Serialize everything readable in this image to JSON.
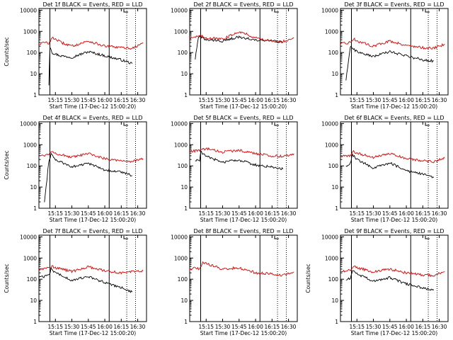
{
  "figure": {
    "colors": {
      "events": "#000000",
      "lld": "#dd0000",
      "axes": "#000000",
      "background": "#ffffff"
    }
  },
  "chart_data": [
    {
      "type": "line",
      "title": "Det 1f BLACK = Events, RED = LLD",
      "xlabel": "Start Time (17-Dec-12 15:00:20)",
      "ylabel": "Counts/sec",
      "yscale": "log",
      "ylim": [
        1,
        12000
      ],
      "xlim": [
        "15:00",
        "16:38"
      ],
      "x_ticks": [
        "15:15",
        "15:30",
        "15:45",
        "16:00",
        "16:15",
        "16:30"
      ],
      "y_ticks": [
        "1",
        "10",
        "100",
        "1000",
        "10000"
      ],
      "vlines_solid": [
        "15:10",
        "16:04"
      ],
      "vlines_dotted": [
        "16:20",
        "16:28"
      ],
      "series": [
        {
          "name": "BLACK = Events",
          "x": [
            "15:09",
            "15:10",
            "15:11",
            "15:12",
            "15:15",
            "15:20",
            "15:30",
            "15:45",
            "16:00",
            "16:15",
            "16:25"
          ],
          "y": [
            3,
            200,
            150,
            100,
            85,
            70,
            60,
            110,
            70,
            45,
            30
          ]
        },
        {
          "name": "RED = LLD",
          "x": [
            "15:00",
            "15:05",
            "15:09",
            "15:12",
            "15:15",
            "15:20",
            "15:30",
            "15:45",
            "16:00",
            "16:15",
            "16:25",
            "16:35"
          ],
          "y": [
            250,
            300,
            280,
            480,
            450,
            300,
            200,
            350,
            200,
            170,
            160,
            280
          ]
        }
      ]
    },
    {
      "type": "line",
      "title": "Det 2f BLACK = Events, RED = LLD",
      "xlabel": "Start Time (17-Dec-12 15:00:20)",
      "ylabel": "",
      "yscale": "log",
      "ylim": [
        1,
        12000
      ],
      "xlim": [
        "15:00",
        "16:38"
      ],
      "x_ticks": [
        "15:15",
        "15:30",
        "15:45",
        "16:00",
        "16:15",
        "16:30"
      ],
      "y_ticks": [
        "1",
        "10",
        "100",
        "1000",
        "10000"
      ],
      "vlines_solid": [
        "15:10",
        "16:04"
      ],
      "vlines_dotted": [
        "16:20",
        "16:28"
      ],
      "series": [
        {
          "name": "BLACK = Events",
          "x": [
            "15:05",
            "15:08",
            "15:10",
            "15:15",
            "15:30",
            "15:45",
            "16:00",
            "16:15",
            "16:25"
          ],
          "y": [
            50,
            500,
            550,
            400,
            350,
            550,
            380,
            350,
            300
          ]
        },
        {
          "name": "RED = LLD",
          "x": [
            "15:00",
            "15:10",
            "15:15",
            "15:30",
            "15:45",
            "16:00",
            "16:15",
            "16:25",
            "16:35"
          ],
          "y": [
            500,
            600,
            500,
            420,
            1000,
            500,
            330,
            330,
            500
          ]
        }
      ]
    },
    {
      "type": "line",
      "title": "Det 3f BLACK = Events, RED = LLD",
      "xlabel": "Start Time (17-Dec-12 15:00:20)",
      "ylabel": "",
      "yscale": "log",
      "ylim": [
        1,
        12000
      ],
      "xlim": [
        "15:00",
        "16:38"
      ],
      "x_ticks": [
        "15:15",
        "15:30",
        "15:45",
        "16:00",
        "16:15",
        "16:30"
      ],
      "y_ticks": [
        "1",
        "10",
        "100",
        "1000",
        "10000"
      ],
      "vlines_solid": [
        "15:10",
        "16:04"
      ],
      "vlines_dotted": [
        "16:20",
        "16:28"
      ],
      "series": [
        {
          "name": "BLACK = Events",
          "x": [
            "15:05",
            "15:09",
            "15:11",
            "15:15",
            "15:30",
            "15:45",
            "16:00",
            "16:15",
            "16:25"
          ],
          "y": [
            5,
            200,
            160,
            110,
            65,
            110,
            70,
            45,
            40
          ]
        },
        {
          "name": "RED = LLD",
          "x": [
            "15:00",
            "15:09",
            "15:12",
            "15:15",
            "15:30",
            "15:45",
            "16:00",
            "16:15",
            "16:25",
            "16:35"
          ],
          "y": [
            250,
            300,
            450,
            350,
            200,
            350,
            220,
            170,
            160,
            250
          ]
        }
      ]
    },
    {
      "type": "line",
      "title": "Det 4f BLACK = Events, RED = LLD",
      "xlabel": "Start Time (17-Dec-12 15:00:20)",
      "ylabel": "Counts/sec",
      "yscale": "log",
      "ylim": [
        1,
        12000
      ],
      "xlim": [
        "15:00",
        "16:38"
      ],
      "x_ticks": [
        "15:15",
        "15:30",
        "15:45",
        "16:00",
        "16:15",
        "16:30"
      ],
      "y_ticks": [
        "1",
        "10",
        "100",
        "1000",
        "10000"
      ],
      "vlines_solid": [
        "15:10",
        "16:04"
      ],
      "vlines_dotted": [
        "16:20",
        "16:28"
      ],
      "series": [
        {
          "name": "BLACK = Events",
          "x": [
            "15:05",
            "15:09",
            "15:11",
            "15:15",
            "15:30",
            "15:45",
            "16:00",
            "16:15",
            "16:25"
          ],
          "y": [
            2,
            150,
            350,
            200,
            90,
            130,
            65,
            50,
            35
          ]
        },
        {
          "name": "RED = LLD",
          "x": [
            "15:00",
            "15:09",
            "15:12",
            "15:15",
            "15:30",
            "15:45",
            "16:00",
            "16:15",
            "16:25",
            "16:35"
          ],
          "y": [
            300,
            350,
            520,
            400,
            250,
            380,
            220,
            180,
            160,
            220
          ]
        }
      ]
    },
    {
      "type": "line",
      "title": "Det 5f BLACK = Events, RED = LLD",
      "xlabel": "Start Time (17-Dec-12 15:00:20)",
      "ylabel": "",
      "yscale": "log",
      "ylim": [
        1,
        12000
      ],
      "xlim": [
        "15:00",
        "16:38"
      ],
      "x_ticks": [
        "15:15",
        "15:30",
        "15:45",
        "16:00",
        "16:15",
        "16:30"
      ],
      "y_ticks": [
        "1",
        "10",
        "100",
        "1000",
        "10000"
      ],
      "vlines_solid": [
        "15:10",
        "16:04"
      ],
      "vlines_dotted": [
        "16:20",
        "16:28"
      ],
      "series": [
        {
          "name": "BLACK = Events",
          "x": [
            "15:05",
            "15:09",
            "15:10",
            "15:15",
            "15:30",
            "15:45",
            "16:00",
            "16:15",
            "16:25"
          ],
          "y": [
            180,
            180,
            450,
            280,
            150,
            190,
            110,
            90,
            70
          ]
        },
        {
          "name": "RED = LLD",
          "x": [
            "15:00",
            "15:10",
            "15:15",
            "15:30",
            "15:45",
            "16:00",
            "16:15",
            "16:25",
            "16:35"
          ],
          "y": [
            480,
            550,
            650,
            450,
            550,
            380,
            300,
            280,
            380
          ]
        }
      ]
    },
    {
      "type": "line",
      "title": "Det 6f BLACK = Events, RED = LLD",
      "xlabel": "Start Time (17-Dec-12 15:00:20)",
      "ylabel": "",
      "yscale": "log",
      "ylim": [
        1,
        12000
      ],
      "xlim": [
        "15:00",
        "16:38"
      ],
      "x_ticks": [
        "15:15",
        "15:30",
        "15:45",
        "16:00",
        "16:15",
        "16:30"
      ],
      "y_ticks": [
        "1",
        "10",
        "100",
        "1000",
        "10000"
      ],
      "vlines_solid": [
        "15:10",
        "16:04"
      ],
      "vlines_dotted": [
        "16:20",
        "16:28"
      ],
      "series": [
        {
          "name": "BLACK = Events",
          "x": [
            "15:05",
            "15:09",
            "15:11",
            "15:15",
            "15:30",
            "15:45",
            "16:00",
            "16:15",
            "16:25"
          ],
          "y": [
            100,
            130,
            350,
            200,
            80,
            140,
            60,
            40,
            28
          ]
        },
        {
          "name": "RED = LLD",
          "x": [
            "15:00",
            "15:09",
            "15:12",
            "15:15",
            "15:30",
            "15:45",
            "16:00",
            "16:15",
            "16:25",
            "16:35"
          ],
          "y": [
            280,
            300,
            480,
            400,
            250,
            380,
            220,
            170,
            160,
            230
          ]
        }
      ]
    },
    {
      "type": "line",
      "title": "Det 7f BLACK = Events, RED = LLD",
      "xlabel": "Start Time (17-Dec-12 15:00:20)",
      "ylabel": "Counts/sec",
      "yscale": "log",
      "ylim": [
        1,
        12000
      ],
      "xlim": [
        "15:00",
        "16:38"
      ],
      "x_ticks": [
        "15:15",
        "15:30",
        "15:45",
        "16:00",
        "16:15",
        "16:30"
      ],
      "y_ticks": [
        "1",
        "10",
        "100",
        "1000",
        "10000"
      ],
      "vlines_solid": [
        "15:10",
        "16:04"
      ],
      "vlines_dotted": [
        "16:20",
        "16:28"
      ],
      "series": [
        {
          "name": "BLACK = Events",
          "x": [
            "15:00",
            "15:09",
            "15:11",
            "15:15",
            "15:30",
            "15:45",
            "16:00",
            "16:15",
            "16:25"
          ],
          "y": [
            120,
            150,
            300,
            200,
            90,
            130,
            70,
            40,
            25
          ]
        },
        {
          "name": "RED = LLD",
          "x": [
            "15:00",
            "15:09",
            "15:12",
            "15:15",
            "15:30",
            "15:45",
            "16:00",
            "16:15",
            "16:25",
            "16:35"
          ],
          "y": [
            300,
            350,
            420,
            350,
            230,
            380,
            250,
            200,
            230,
            250
          ]
        }
      ]
    },
    {
      "type": "line",
      "title": "Det 8f BLACK = Events, RED = LLD",
      "xlabel": "Start Time (17-Dec-12 15:00:20)",
      "ylabel": "",
      "yscale": "log",
      "ylim": [
        1,
        12000
      ],
      "xlim": [
        "15:00",
        "16:38"
      ],
      "x_ticks": [
        "15:15",
        "15:30",
        "15:45",
        "16:00",
        "16:15",
        "16:30"
      ],
      "y_ticks": [
        "1",
        "10",
        "100",
        "1000",
        "10000"
      ],
      "vlines_solid": [
        "15:10",
        "16:04"
      ],
      "vlines_dotted": [
        "16:20",
        "16:28"
      ],
      "series": [
        {
          "name": "RED = LLD",
          "x": [
            "15:00",
            "15:05",
            "15:09",
            "15:12",
            "15:15",
            "15:30",
            "15:45",
            "16:00",
            "16:15",
            "16:25",
            "16:35"
          ],
          "y": [
            280,
            350,
            300,
            650,
            550,
            300,
            350,
            200,
            180,
            150,
            220
          ]
        }
      ]
    },
    {
      "type": "line",
      "title": "Det 9f BLACK = Events, RED = LLD",
      "xlabel": "Start Time (17-Dec-12 15:00:20)",
      "ylabel": "Counts/sec",
      "yscale": "log",
      "ylim": [
        1,
        12000
      ],
      "xlim": [
        "15:00",
        "16:38"
      ],
      "x_ticks": [
        "15:15",
        "15:30",
        "15:45",
        "16:00",
        "16:15",
        "16:30"
      ],
      "y_ticks": [
        "1",
        "10",
        "100",
        "1000",
        "10000"
      ],
      "vlines_solid": [
        "15:10",
        "16:04"
      ],
      "vlines_dotted": [
        "16:20",
        "16:28"
      ],
      "series": [
        {
          "name": "BLACK = Events",
          "x": [
            "15:05",
            "15:09",
            "15:11",
            "15:15",
            "15:30",
            "15:45",
            "16:00",
            "16:15",
            "16:25"
          ],
          "y": [
            90,
            110,
            250,
            180,
            80,
            120,
            60,
            40,
            30
          ]
        },
        {
          "name": "RED = LLD",
          "x": [
            "15:00",
            "15:09",
            "15:12",
            "15:15",
            "15:30",
            "15:45",
            "16:00",
            "16:15",
            "16:25",
            "16:35"
          ],
          "y": [
            220,
            280,
            400,
            350,
            220,
            300,
            200,
            160,
            150,
            230
          ]
        }
      ]
    }
  ]
}
